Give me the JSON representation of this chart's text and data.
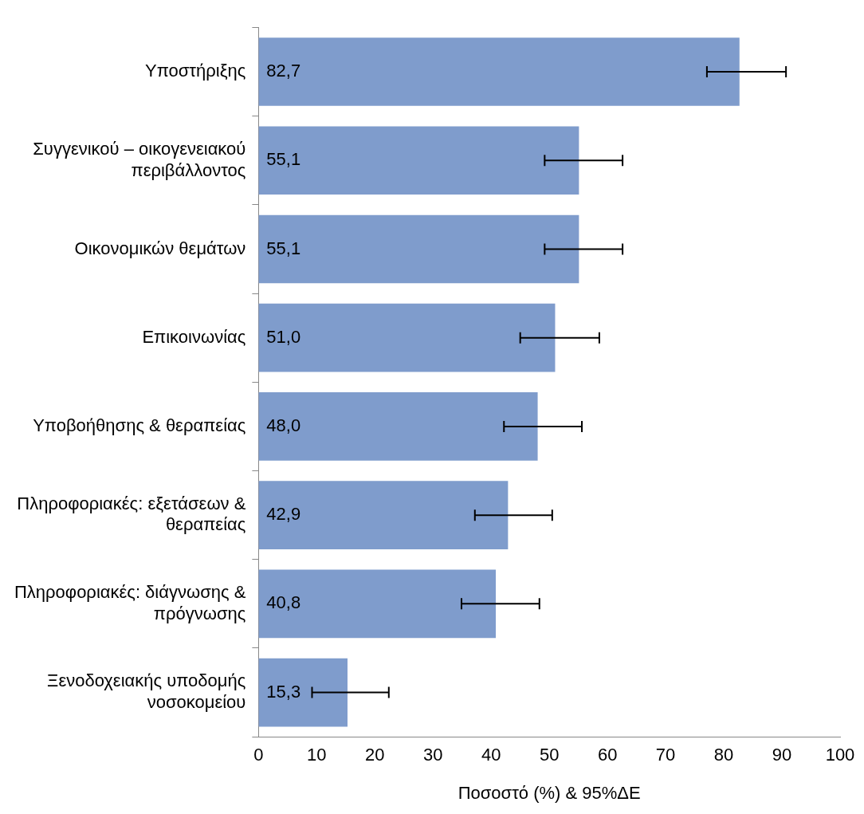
{
  "chart_data": {
    "type": "bar",
    "orientation": "horizontal",
    "xlabel": "Ποσοστό (%) & 95%ΔΕ",
    "categories": [
      "Υποστήριξης",
      "Συγγενικού – οικογενειακού περιβάλλοντος",
      "Οικονομικών θεμάτων",
      "Επικοινωνίας",
      "Υποβοήθησης & θεραπείας",
      "Πληροφοριακές: εξετάσεων & θεραπείας",
      "Πληροφοριακές: διάγνωσης & πρόγνωσης",
      "Ξενοδοχειακής υποδομής νοσοκομείου"
    ],
    "values": [
      82.7,
      55.1,
      55.1,
      51.0,
      48.0,
      42.9,
      40.8,
      15.3
    ],
    "value_labels": [
      "82,7",
      "55,1",
      "55,1",
      "51,0",
      "48,0",
      "42,9",
      "40,8",
      "15,3"
    ],
    "errors": [
      [
        77.1,
        90.7
      ],
      [
        49.2,
        62.6
      ],
      [
        49.2,
        62.6
      ],
      [
        45.0,
        58.6
      ],
      [
        42.2,
        55.6
      ],
      [
        37.2,
        50.5
      ],
      [
        34.9,
        48.3
      ],
      [
        9.2,
        22.4
      ]
    ],
    "color": "#7f9ccc",
    "xlim": [
      0,
      100
    ],
    "xticks": [
      0,
      10,
      20,
      30,
      40,
      50,
      60,
      70,
      80,
      90,
      100
    ],
    "grid": false,
    "legend": false
  }
}
